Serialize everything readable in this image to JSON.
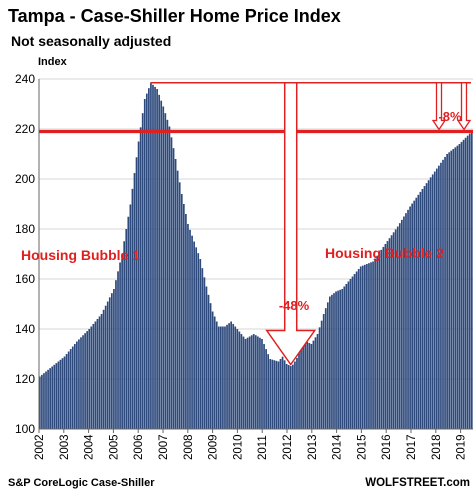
{
  "chart_data": {
    "type": "bar",
    "title": "Tampa - Case-Shiller Home Price Index",
    "subtitle": "Not seasonally adjusted",
    "ylabel": "Index",
    "source": "S&P CoreLogic Case-Shiller",
    "watermark": "WOLFSTREET.com",
    "ylim": [
      100,
      240
    ],
    "yticks": [
      "100",
      "120",
      "140",
      "160",
      "180",
      "200",
      "220",
      "240"
    ],
    "xticks": [
      "2002",
      "2003",
      "2004",
      "2005",
      "2006",
      "2007",
      "2008",
      "2009",
      "2010",
      "2011",
      "2012",
      "2013",
      "2014",
      "2015",
      "2016",
      "2017",
      "2018",
      "2019"
    ],
    "x_start_year": 2002,
    "x_end_year": 2019.5,
    "grid": true,
    "bar_color": "#2e4a7d",
    "reference_line": {
      "value": 219,
      "color": "#e02020"
    },
    "peak_line": {
      "value": 238.5,
      "color": "#e02020"
    },
    "annotations": [
      {
        "text": "Housing Bubble 1",
        "color": "#e02020"
      },
      {
        "text": "Housing Bubble 2",
        "color": "#e02020"
      },
      {
        "text": "-48%",
        "color": "#e02020"
      },
      {
        "text": "-8%",
        "color": "#e02020"
      }
    ],
    "anchors": [
      [
        2002.0,
        121.0
      ],
      [
        2002.5,
        125.0
      ],
      [
        2003.0,
        129.0
      ],
      [
        2003.5,
        135.0
      ],
      [
        2004.0,
        140.0
      ],
      [
        2004.5,
        146.0
      ],
      [
        2005.0,
        156.0
      ],
      [
        2005.33,
        170.0
      ],
      [
        2005.67,
        190.0
      ],
      [
        2006.0,
        215.0
      ],
      [
        2006.25,
        232.0
      ],
      [
        2006.5,
        238.5
      ],
      [
        2006.75,
        236.0
      ],
      [
        2007.0,
        229.0
      ],
      [
        2007.25,
        221.0
      ],
      [
        2007.5,
        208.0
      ],
      [
        2007.75,
        194.0
      ],
      [
        2008.0,
        182.0
      ],
      [
        2008.25,
        175.0
      ],
      [
        2008.5,
        168.0
      ],
      [
        2008.75,
        157.0
      ],
      [
        2009.0,
        147.0
      ],
      [
        2009.25,
        141.0
      ],
      [
        2009.5,
        141.0
      ],
      [
        2009.75,
        143.0
      ],
      [
        2010.0,
        140.0
      ],
      [
        2010.33,
        136.0
      ],
      [
        2010.67,
        138.0
      ],
      [
        2011.0,
        136.0
      ],
      [
        2011.33,
        128.0
      ],
      [
        2011.67,
        127.0
      ],
      [
        2011.83,
        129.0
      ],
      [
        2012.0,
        126.0
      ],
      [
        2012.2,
        125.0
      ],
      [
        2012.4,
        128.0
      ],
      [
        2012.6,
        133.0
      ],
      [
        2012.8,
        135.0
      ],
      [
        2013.0,
        134.0
      ],
      [
        2013.25,
        138.0
      ],
      [
        2013.5,
        146.0
      ],
      [
        2013.75,
        153.0
      ],
      [
        2014.0,
        155.0
      ],
      [
        2014.25,
        156.0
      ],
      [
        2014.5,
        159.0
      ],
      [
        2014.75,
        162.0
      ],
      [
        2015.0,
        165.0
      ],
      [
        2015.5,
        167.0
      ],
      [
        2016.0,
        174.0
      ],
      [
        2016.5,
        181.0
      ],
      [
        2017.0,
        189.0
      ],
      [
        2017.5,
        196.0
      ],
      [
        2018.0,
        203.0
      ],
      [
        2018.5,
        210.0
      ],
      [
        2019.0,
        214.0
      ],
      [
        2019.5,
        219.0
      ]
    ]
  }
}
